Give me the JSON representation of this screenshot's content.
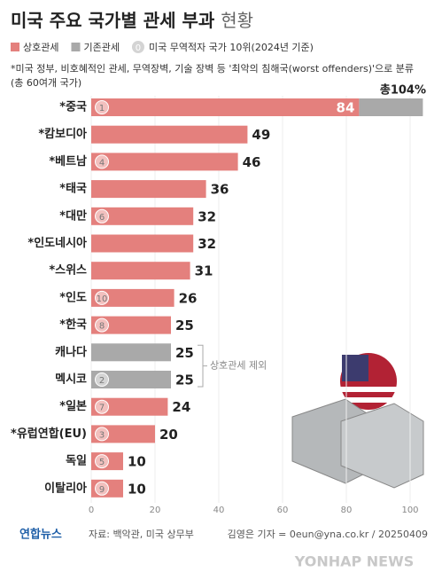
{
  "chart_data": {
    "type": "bar",
    "orientation": "horizontal",
    "stacked": true,
    "title": "미국 주요 국가별 관세 부과",
    "subtitle": "현황",
    "notes": [
      "*미국 정부, 비호혜적인 관세, 무역장벽, 기술 장벽 등 '최악의 침해국(worst offenders)'으로 분류",
      "(총 60여개 국가)"
    ],
    "rank_legend": {
      "badge": "0",
      "label": "미국 무역적자 국가 10위(2024년 기준)"
    },
    "categories": [
      "*중국",
      "*캄보디아",
      "*베트남",
      "*태국",
      "*대만",
      "*인도네시아",
      "*스위스",
      "*인도",
      "*한국",
      "캐나다",
      "멕시코",
      "*일본",
      "*유럽연합(EU)",
      "독일",
      "이탈리아"
    ],
    "ranks": [
      1,
      null,
      4,
      null,
      6,
      null,
      null,
      10,
      8,
      null,
      2,
      7,
      3,
      5,
      9
    ],
    "series": [
      {
        "name": "상호관세",
        "color": "#e4807d",
        "values": [
          84,
          49,
          46,
          36,
          32,
          32,
          31,
          26,
          25,
          null,
          null,
          24,
          20,
          10,
          10
        ]
      },
      {
        "name": "기존관세",
        "color": "#a9a9a9",
        "values": [
          20,
          null,
          null,
          null,
          null,
          null,
          null,
          null,
          null,
          25,
          25,
          null,
          null,
          null,
          null
        ]
      }
    ],
    "total_label": "총104%",
    "bracket_label": "상호관세 제외",
    "xlim": [
      0,
      105
    ],
    "xticks": [
      0,
      20,
      40,
      60,
      80,
      100
    ],
    "grid": true,
    "footer": {
      "logo": "연합뉴스",
      "source": "자료: 백악관, 미국 상무부",
      "credit": "김영은 기자 = 0eun@yna.co.kr / 20250409",
      "watermark": "YONHAP NEWS"
    }
  }
}
